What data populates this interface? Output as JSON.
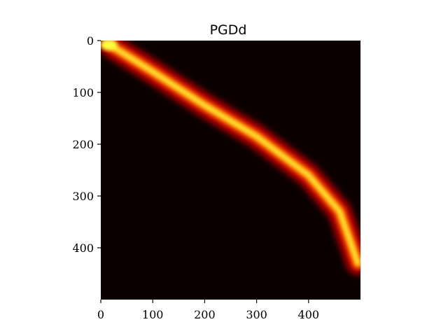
{
  "chart_data": {
    "type": "heatmap",
    "title": "PGDd",
    "xlabel": "",
    "ylabel": "",
    "xlim": [
      0,
      500
    ],
    "ylim": [
      500,
      0
    ],
    "x_ticks": [
      "0",
      "100",
      "200",
      "300",
      "400"
    ],
    "y_ticks": [
      "0",
      "100",
      "200",
      "300",
      "400"
    ],
    "y_inverted": true,
    "grid": false,
    "colormap": "hot",
    "background_color": "#0a0000",
    "band": {
      "description_points": [
        {
          "x": 20,
          "y": 10
        },
        {
          "x": 100,
          "y": 60
        },
        {
          "x": 200,
          "y": 125
        },
        {
          "x": 300,
          "y": 185
        },
        {
          "x": 400,
          "y": 260
        },
        {
          "x": 460,
          "y": 330
        },
        {
          "x": 495,
          "y": 430
        }
      ],
      "peak_color": "#ffff40"
    }
  }
}
